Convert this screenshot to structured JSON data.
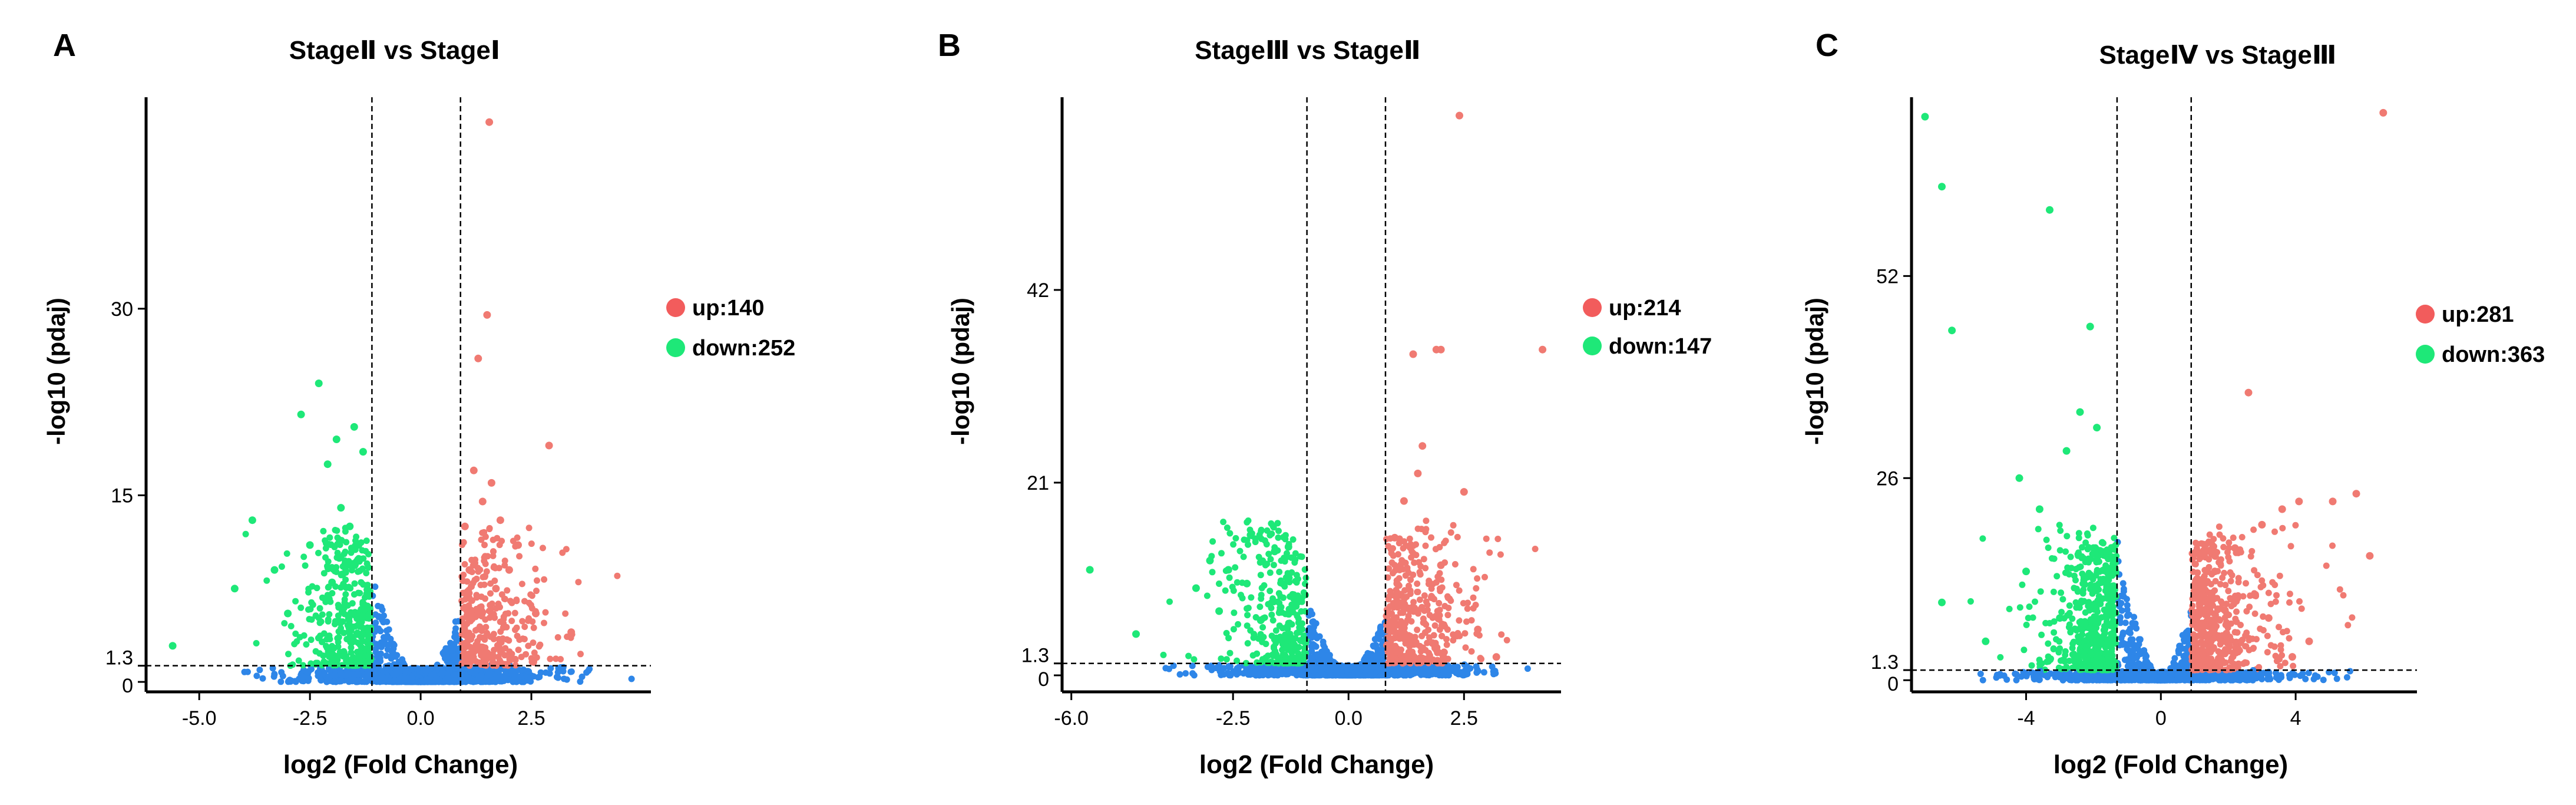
{
  "colors": {
    "up": "#F07A72",
    "down": "#1EE878",
    "ns": "#2E86E8",
    "legend_up": "#F25C5C",
    "legend_down": "#1EE878",
    "axis": "#000000"
  },
  "chart_data": [
    {
      "type": "scatter",
      "panel_label": "A",
      "title": "StageⅡ vs StageⅠ",
      "xlabel": "log2 (Fold Change)",
      "ylabel": "-log10 (pdaj)",
      "xlim": [
        -6.2,
        5.2
      ],
      "ylim": [
        -0.8,
        47
      ],
      "xticks": [
        -5,
        -2.5,
        0,
        2.5
      ],
      "xtick_labels": [
        "-5.0",
        "-2.5",
        "0.0",
        "2.5"
      ],
      "yticks": [
        0,
        1.3,
        15,
        30
      ],
      "ytick_labels": [
        "0",
        "1.3",
        "15",
        "30"
      ],
      "fc_cut": [
        -1.1,
        0.9
      ],
      "p_cut": 1.3,
      "legend": [
        {
          "name": "up",
          "count": 140,
          "label": "up:140"
        },
        {
          "name": "down",
          "count": 252,
          "label": "down:252"
        }
      ],
      "significant_up": [
        [
          1.55,
          45.0
        ],
        [
          1.5,
          29.5
        ],
        [
          1.3,
          26.0
        ],
        [
          2.9,
          19.0
        ],
        [
          1.2,
          17.0
        ],
        [
          1.6,
          16.0
        ],
        [
          1.4,
          14.5
        ],
        [
          1.8,
          13.0
        ],
        [
          2.2,
          11.0
        ],
        [
          1.0,
          12.5
        ],
        [
          2.6,
          5.5
        ],
        [
          3.4,
          4.0
        ],
        [
          2.0,
          9.0
        ],
        [
          1.7,
          7.5
        ],
        [
          1.1,
          9.0
        ]
      ],
      "significant_down": [
        [
          -2.3,
          24.0
        ],
        [
          -2.7,
          21.5
        ],
        [
          -1.9,
          19.5
        ],
        [
          -1.5,
          20.5
        ],
        [
          -1.3,
          18.5
        ],
        [
          -2.1,
          17.5
        ],
        [
          -3.8,
          13.0
        ],
        [
          -4.2,
          7.5
        ],
        [
          -5.6,
          2.9
        ],
        [
          -1.8,
          14.0
        ],
        [
          -2.5,
          11.0
        ],
        [
          -3.3,
          9.0
        ],
        [
          -3.0,
          5.5
        ],
        [
          -1.6,
          12.5
        ],
        [
          -2.0,
          8.0
        ]
      ]
    },
    {
      "type": "scatter",
      "panel_label": "B",
      "title": "StageⅢ vs StageⅡ",
      "xlabel": "log2 (Fold Change)",
      "ylabel": "-log10 (pdaj)",
      "xlim": [
        -6.2,
        4.6
      ],
      "ylim": [
        -1.8,
        63
      ],
      "xticks": [
        -6,
        -2.5,
        0,
        2.5
      ],
      "xtick_labels": [
        "-6.0",
        "-2.5",
        "0.0",
        "2.5"
      ],
      "yticks": [
        0,
        1.3,
        21,
        42
      ],
      "ytick_labels": [
        "0",
        "1.3",
        "21",
        "42"
      ],
      "fc_cut": [
        -0.9,
        0.8
      ],
      "p_cut": 1.3,
      "legend": [
        {
          "name": "up",
          "count": 214,
          "label": "up:214"
        },
        {
          "name": "down",
          "count": 147,
          "label": "down:147"
        }
      ],
      "significant_up": [
        [
          2.4,
          61.0
        ],
        [
          4.2,
          35.5
        ],
        [
          1.4,
          35.0
        ],
        [
          1.9,
          35.5
        ],
        [
          2.0,
          35.5
        ],
        [
          1.6,
          25.0
        ],
        [
          1.5,
          22.0
        ],
        [
          2.5,
          20.0
        ],
        [
          1.2,
          19.0
        ],
        [
          2.0,
          12.0
        ],
        [
          2.8,
          5.0
        ],
        [
          1.0,
          15.0
        ],
        [
          1.8,
          8.5
        ],
        [
          3.2,
          2.0
        ]
      ],
      "significant_down": [
        [
          -5.6,
          11.5
        ],
        [
          -4.6,
          4.5
        ],
        [
          -3.0,
          12.5
        ],
        [
          -2.6,
          11.5
        ],
        [
          -1.6,
          13.5
        ],
        [
          -1.3,
          14.0
        ],
        [
          -2.2,
          10.0
        ],
        [
          -3.3,
          9.5
        ],
        [
          -2.8,
          7.0
        ],
        [
          -1.9,
          6.0
        ],
        [
          -1.1,
          8.0
        ]
      ]
    },
    {
      "type": "scatter",
      "panel_label": "C",
      "title": "StageⅣ vs StageⅢ",
      "xlabel": "log2 (Fold Change)",
      "ylabel": "-log10 (pdaj)",
      "xlim": [
        -7.4,
        7.6
      ],
      "ylim": [
        -1.5,
        75
      ],
      "xticks": [
        -4,
        0,
        4
      ],
      "xtick_labels": [
        "-4",
        "0",
        "4"
      ],
      "yticks": [
        0,
        1.3,
        26,
        52
      ],
      "ytick_labels": [
        "0",
        "1.3",
        "26",
        "52"
      ],
      "fc_cut": [
        -1.3,
        0.9
      ],
      "p_cut": 1.3,
      "legend": [
        {
          "name": "up",
          "count": 281,
          "label": "up:281"
        },
        {
          "name": "down",
          "count": 363,
          "label": "down:363"
        }
      ],
      "significant_up": [
        [
          6.6,
          73.0
        ],
        [
          2.6,
          37.0
        ],
        [
          5.8,
          24.0
        ],
        [
          4.1,
          23.0
        ],
        [
          5.1,
          23.0
        ],
        [
          3.6,
          22.0
        ],
        [
          3.0,
          20.0
        ],
        [
          6.2,
          16.0
        ],
        [
          2.2,
          17.0
        ],
        [
          1.6,
          14.0
        ],
        [
          3.2,
          8.0
        ],
        [
          4.4,
          5.0
        ],
        [
          1.2,
          12.0
        ],
        [
          2.8,
          11.0
        ],
        [
          1.9,
          9.0
        ],
        [
          3.9,
          3.0
        ]
      ],
      "significant_down": [
        [
          -7.0,
          72.5
        ],
        [
          -6.5,
          63.5
        ],
        [
          -3.3,
          60.5
        ],
        [
          -6.2,
          45.0
        ],
        [
          -2.1,
          45.5
        ],
        [
          -1.9,
          32.5
        ],
        [
          -2.4,
          34.5
        ],
        [
          -2.8,
          29.5
        ],
        [
          -4.2,
          26.0
        ],
        [
          -3.6,
          22.0
        ],
        [
          -6.5,
          10.0
        ],
        [
          -5.2,
          5.0
        ],
        [
          -2.0,
          17.0
        ],
        [
          -4.0,
          14.0
        ],
        [
          -3.0,
          8.0
        ],
        [
          -1.6,
          12.0
        ]
      ]
    }
  ]
}
